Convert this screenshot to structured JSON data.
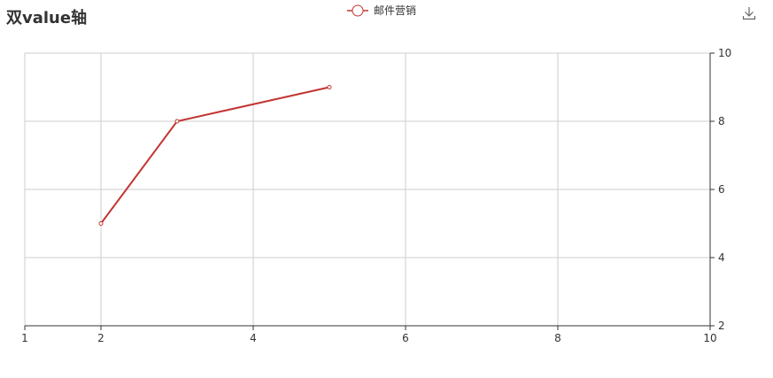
{
  "title": "双value轴",
  "toolbar": {
    "download_icon": "download-icon"
  },
  "chart_data": {
    "type": "line",
    "title": "双value轴",
    "xlabel": "",
    "ylabel": "",
    "x_axis": {
      "type": "value",
      "ticks": [
        1,
        2,
        4,
        6,
        8,
        10
      ],
      "range": [
        1,
        10
      ],
      "position": "bottom"
    },
    "y_axis": {
      "type": "value",
      "ticks": [
        2,
        4,
        6,
        8,
        10
      ],
      "range": [
        2,
        10
      ],
      "position": "right"
    },
    "grid": true,
    "legend": {
      "position": "top-center",
      "entries": [
        "邮件营销"
      ]
    },
    "series": [
      {
        "name": "邮件营销",
        "color": "#c23531",
        "points": [
          [
            2,
            5
          ],
          [
            3,
            8
          ],
          [
            5,
            9
          ]
        ]
      }
    ]
  }
}
